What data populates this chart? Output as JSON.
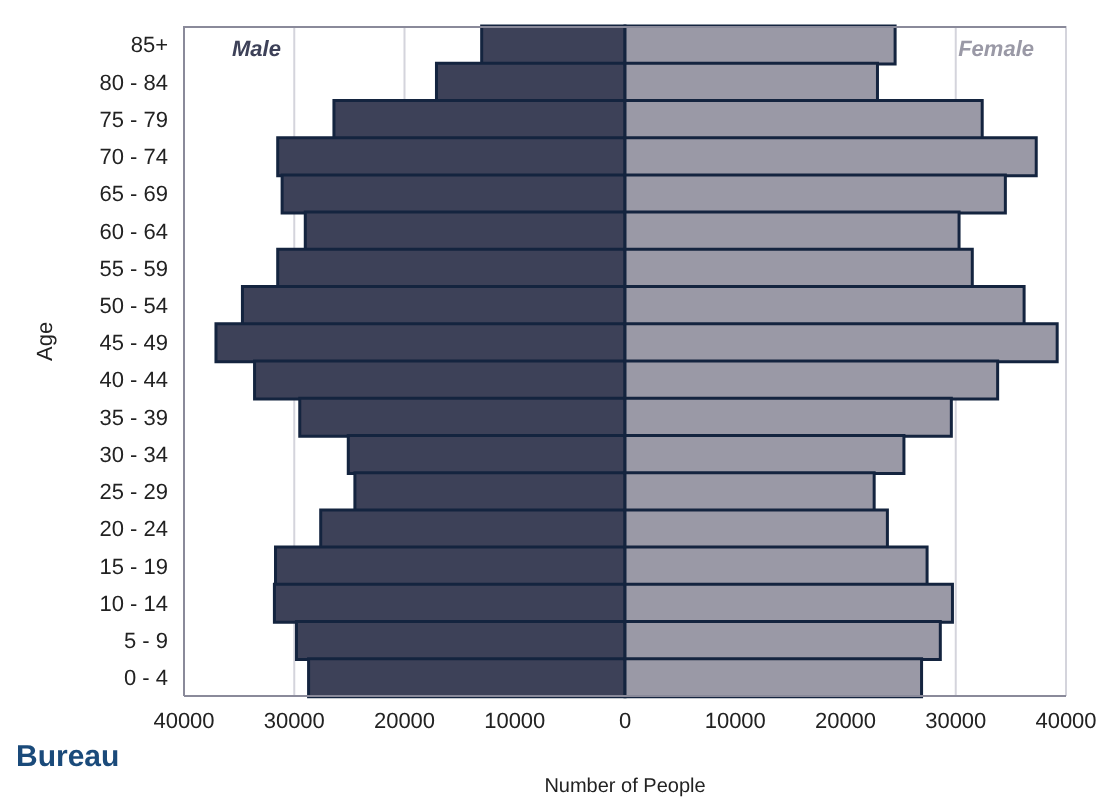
{
  "chart_data": {
    "type": "bar",
    "orientation": "horizontal",
    "stacked": true,
    "xlabel": "Number of People",
    "ylabel": "Age",
    "categories": [
      "85+",
      "80 - 84",
      "75 - 79",
      "70 - 74",
      "65 - 69",
      "60 - 64",
      "55 - 59",
      "50 - 54",
      "45 - 49",
      "40 - 44",
      "35 - 39",
      "30 - 34",
      "25 - 29",
      "20 - 24",
      "15 - 19",
      "10 - 14",
      "5 - 9",
      "0 - 4"
    ],
    "series": [
      {
        "name": "Male",
        "color": "#3d4158",
        "values": [
          -13000,
          -17100,
          -26400,
          -31500,
          -31100,
          -29000,
          -31500,
          -34700,
          -37100,
          -33600,
          -29500,
          -25100,
          -24500,
          -27600,
          -31700,
          -31800,
          -29800,
          -28700
        ]
      },
      {
        "name": "Female",
        "color": "#9a99a6",
        "values": [
          24500,
          22900,
          32400,
          37300,
          34500,
          30300,
          31500,
          36200,
          39200,
          33800,
          29600,
          25300,
          22600,
          23800,
          27400,
          29700,
          28600,
          26900
        ]
      }
    ],
    "xlim": [
      -40000,
      40000
    ],
    "xticks": [
      {
        "value": -40000,
        "label": "40000"
      },
      {
        "value": -30000,
        "label": "30000"
      },
      {
        "value": -20000,
        "label": "20000"
      },
      {
        "value": -10000,
        "label": "10000"
      },
      0,
      10000,
      20000,
      30000,
      40000
    ],
    "grid": "x",
    "legend": false,
    "annotations": [
      "Bureau"
    ]
  }
}
